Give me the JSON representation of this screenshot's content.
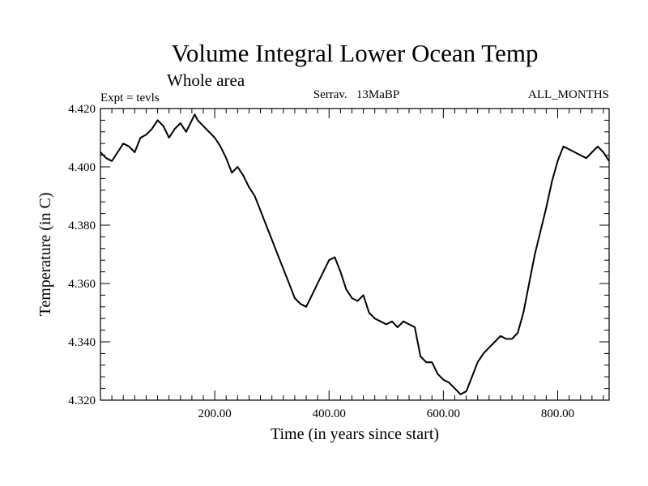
{
  "chart_data": {
    "type": "line",
    "title": "Volume Integral Lower Ocean Temp",
    "subtitle": "Whole area",
    "annotations": {
      "left": "Expt = tevls",
      "center": "Serrav.   13MaBP",
      "right": "ALL_MONTHS"
    },
    "xlabel": "Time (in years since start)",
    "ylabel": "Temperature (in C)",
    "xlim": [
      0,
      890
    ],
    "ylim": [
      4.32,
      4.42
    ],
    "x_ticks": [
      200,
      400,
      600,
      800
    ],
    "x_tick_labels": [
      "200.00",
      "400.00",
      "600.00",
      "800.00"
    ],
    "y_ticks": [
      4.32,
      4.34,
      4.36,
      4.38,
      4.4,
      4.42
    ],
    "y_tick_labels": [
      "4.320",
      "4.340",
      "4.360",
      "4.380",
      "4.400",
      "4.420"
    ],
    "grid": false,
    "series": [
      {
        "name": "Temperature",
        "color": "#000000",
        "x": [
          0,
          10,
          20,
          30,
          40,
          50,
          60,
          70,
          80,
          90,
          100,
          110,
          120,
          130,
          140,
          150,
          160,
          165,
          170,
          180,
          190,
          200,
          210,
          220,
          230,
          240,
          250,
          260,
          270,
          280,
          290,
          300,
          310,
          320,
          330,
          340,
          350,
          360,
          370,
          380,
          390,
          400,
          410,
          420,
          430,
          440,
          450,
          460,
          470,
          480,
          490,
          500,
          510,
          520,
          530,
          540,
          550,
          560,
          570,
          580,
          590,
          600,
          610,
          620,
          630,
          640,
          650,
          660,
          670,
          680,
          690,
          700,
          710,
          720,
          730,
          740,
          750,
          760,
          770,
          780,
          790,
          800,
          810,
          820,
          830,
          840,
          850,
          860,
          870,
          880,
          890
        ],
        "values": [
          4.405,
          4.403,
          4.402,
          4.405,
          4.408,
          4.407,
          4.405,
          4.41,
          4.411,
          4.413,
          4.416,
          4.414,
          4.41,
          4.413,
          4.415,
          4.412,
          4.416,
          4.418,
          4.416,
          4.414,
          4.412,
          4.41,
          4.407,
          4.403,
          4.398,
          4.4,
          4.397,
          4.393,
          4.39,
          4.385,
          4.38,
          4.375,
          4.37,
          4.365,
          4.36,
          4.355,
          4.353,
          4.352,
          4.356,
          4.36,
          4.364,
          4.368,
          4.369,
          4.364,
          4.358,
          4.355,
          4.354,
          4.356,
          4.35,
          4.348,
          4.347,
          4.346,
          4.347,
          4.345,
          4.347,
          4.346,
          4.345,
          4.335,
          4.333,
          4.333,
          4.329,
          4.327,
          4.326,
          4.324,
          4.322,
          4.323,
          4.328,
          4.333,
          4.336,
          4.338,
          4.34,
          4.342,
          4.341,
          4.341,
          4.343,
          4.35,
          4.36,
          4.37,
          4.378,
          4.386,
          4.395,
          4.402,
          4.407,
          4.406,
          4.405,
          4.404,
          4.403,
          4.405,
          4.407,
          4.405,
          4.402
        ]
      }
    ]
  }
}
